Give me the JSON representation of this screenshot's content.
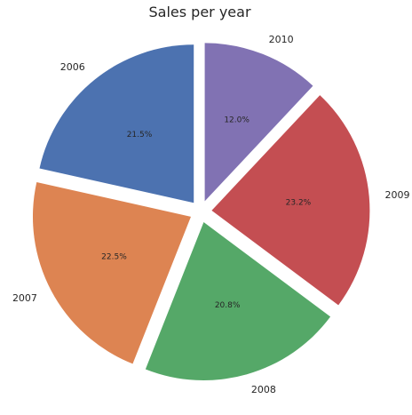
{
  "chart_data": {
    "type": "pie",
    "title": "Sales per year",
    "categories": [
      "2006",
      "2007",
      "2008",
      "2009",
      "2010"
    ],
    "values": [
      21.5,
      22.5,
      20.8,
      23.2,
      12.0
    ],
    "percent_labels": [
      "21.5%",
      "22.5%",
      "20.8%",
      "23.2%",
      "12.0%"
    ],
    "colors": [
      "#4c72b0",
      "#dd8452",
      "#55a868",
      "#c44e52",
      "#8172b3"
    ],
    "start_angle_deg": 90,
    "direction": "counterclockwise",
    "exploded": true,
    "legend": "none"
  }
}
